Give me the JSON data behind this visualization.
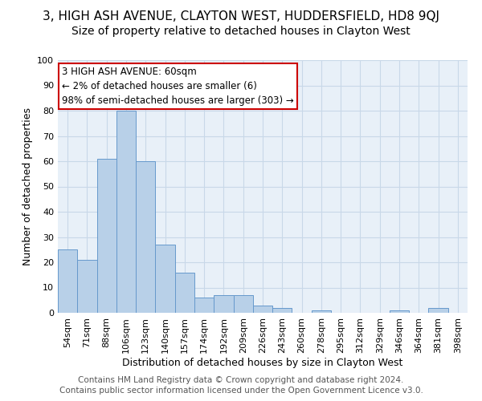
{
  "title1": "3, HIGH ASH AVENUE, CLAYTON WEST, HUDDERSFIELD, HD8 9QJ",
  "title2": "Size of property relative to detached houses in Clayton West",
  "xlabel": "Distribution of detached houses by size in Clayton West",
  "ylabel": "Number of detached properties",
  "categories": [
    "54sqm",
    "71sqm",
    "88sqm",
    "106sqm",
    "123sqm",
    "140sqm",
    "157sqm",
    "174sqm",
    "192sqm",
    "209sqm",
    "226sqm",
    "243sqm",
    "260sqm",
    "278sqm",
    "295sqm",
    "312sqm",
    "329sqm",
    "346sqm",
    "364sqm",
    "381sqm",
    "398sqm"
  ],
  "values": [
    25,
    21,
    61,
    80,
    60,
    27,
    16,
    6,
    7,
    7,
    3,
    2,
    0,
    1,
    0,
    0,
    0,
    1,
    0,
    2,
    0
  ],
  "bar_color": "#b8d0e8",
  "bar_edge_color": "#6699cc",
  "annotation_line1": "3 HIGH ASH AVENUE: 60sqm",
  "annotation_line2": "← 2% of detached houses are smaller (6)",
  "annotation_line3": "98% of semi-detached houses are larger (303) →",
  "ylim": [
    0,
    100
  ],
  "yticks": [
    0,
    10,
    20,
    30,
    40,
    50,
    60,
    70,
    80,
    90,
    100
  ],
  "grid_color": "#c8d8e8",
  "bg_color": "#e8f0f8",
  "footer1": "Contains HM Land Registry data © Crown copyright and database right 2024.",
  "footer2": "Contains public sector information licensed under the Open Government Licence v3.0.",
  "title1_fontsize": 11,
  "title2_fontsize": 10,
  "xlabel_fontsize": 9,
  "ylabel_fontsize": 9,
  "tick_fontsize": 8,
  "ann_fontsize": 8.5,
  "footer_fontsize": 7.5
}
